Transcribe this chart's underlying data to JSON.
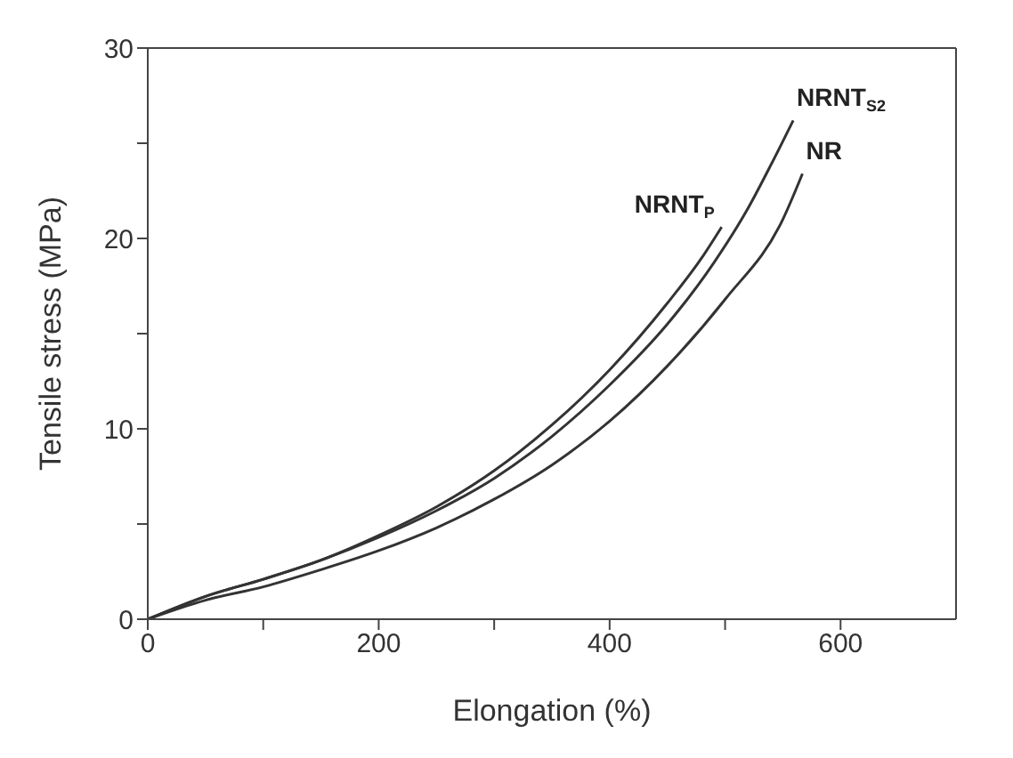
{
  "chart_data": {
    "type": "line",
    "xlabel": "Elongation (%)",
    "ylabel": "Tensile stress (MPa)",
    "xlim": [
      0,
      700
    ],
    "ylim": [
      0,
      30
    ],
    "xticks": [
      0,
      {
        "value": 100,
        "label": null
      },
      200,
      {
        "value": 300,
        "label": null
      },
      400,
      {
        "value": 500,
        "label": null
      },
      600
    ],
    "yticks": [
      0,
      {
        "value": 5,
        "label": null
      },
      10,
      {
        "value": 15,
        "label": null
      },
      20,
      {
        "value": 25,
        "label": null
      },
      30
    ],
    "marker": "none",
    "line_style": "solid",
    "series": [
      {
        "name": "NRNT$_{P}$",
        "color": "#333333",
        "x": [
          0,
          50,
          100,
          150,
          200,
          250,
          300,
          350,
          400,
          450,
          480,
          497
        ],
        "values": [
          0,
          1.2,
          2.1,
          3.1,
          4.4,
          5.9,
          7.8,
          10.2,
          13.1,
          16.6,
          19.0,
          20.6
        ]
      },
      {
        "name": "NRNT$_{S2}$",
        "color": "#333333",
        "x": [
          0,
          50,
          100,
          150,
          200,
          250,
          300,
          350,
          400,
          450,
          490,
          520,
          540,
          559
        ],
        "values": [
          0,
          1.2,
          2.1,
          3.1,
          4.3,
          5.7,
          7.4,
          9.6,
          12.3,
          15.5,
          18.7,
          21.6,
          23.9,
          26.2
        ]
      },
      {
        "name": "NR",
        "color": "#333333",
        "x": [
          0,
          50,
          100,
          150,
          200,
          250,
          300,
          350,
          400,
          450,
          500,
          550,
          567
        ],
        "values": [
          0,
          1.0,
          1.7,
          2.6,
          3.6,
          4.8,
          6.3,
          8.1,
          10.4,
          13.3,
          16.8,
          21.0,
          23.4
        ]
      }
    ]
  }
}
